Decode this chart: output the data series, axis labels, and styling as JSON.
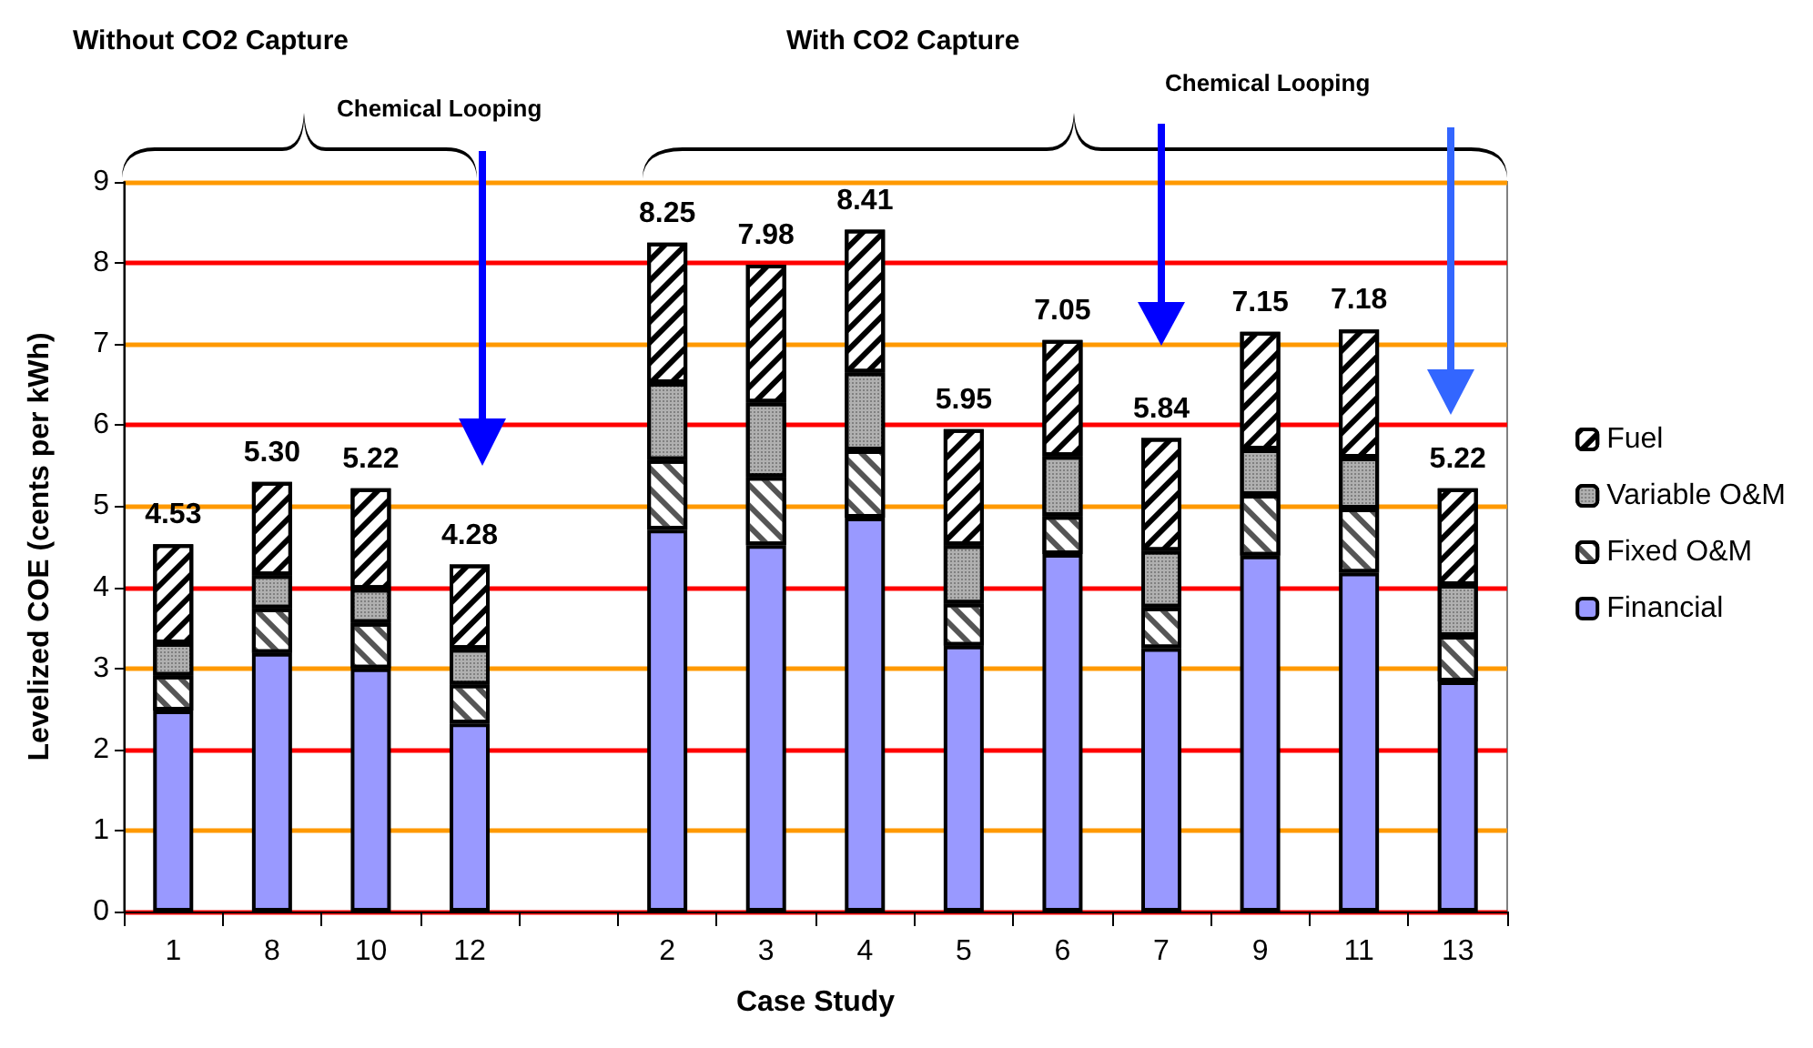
{
  "chart_data": {
    "type": "bar",
    "stacked": true,
    "xlabel": "Case Study",
    "ylabel": "Levelized COE (cents per kWh)",
    "annotations": [
      "Without CO2 Capture",
      "With CO2 Capture",
      "Chemical Looping",
      "Chemical Looping"
    ],
    "categories": [
      "1",
      "8",
      "10",
      "12",
      null,
      "2",
      "3",
      "4",
      "5",
      "6",
      "7",
      "9",
      "11",
      "13"
    ],
    "series": [
      {
        "name": "Financial",
        "color": "#9999ff",
        "values": [
          2.48,
          3.19,
          3.0,
          2.32,
          null,
          4.71,
          4.52,
          4.86,
          3.28,
          4.41,
          3.25,
          4.39,
          4.18,
          2.84
        ]
      },
      {
        "name": "Fixed O&M",
        "color": "#ffffff",
        "values": [
          0.43,
          0.55,
          0.56,
          0.48,
          null,
          0.86,
          0.84,
          0.83,
          0.52,
          0.47,
          0.5,
          0.75,
          0.79,
          0.56
        ]
      },
      {
        "name": "Variable O&M",
        "color": "#b0b0b0",
        "values": [
          0.4,
          0.41,
          0.42,
          0.44,
          null,
          0.95,
          0.92,
          0.96,
          0.72,
          0.74,
          0.7,
          0.56,
          0.63,
          0.63
        ]
      },
      {
        "name": "Fuel",
        "color": "#ffffff",
        "values": [
          1.22,
          1.15,
          1.24,
          1.04,
          null,
          1.73,
          1.7,
          1.76,
          1.43,
          1.43,
          1.39,
          1.45,
          1.58,
          1.19
        ]
      }
    ],
    "totals": [
      "4.53",
      "5.30",
      "5.22",
      "4.28",
      null,
      "8.25",
      "7.98",
      "8.41",
      "5.95",
      "7.05",
      "5.84",
      "7.15",
      "7.18",
      "5.22"
    ],
    "ylim": [
      0,
      9
    ],
    "yticks": [
      0,
      1,
      2,
      3,
      4,
      5,
      6,
      7,
      8,
      9
    ],
    "grid": "y",
    "legend": "right"
  }
}
